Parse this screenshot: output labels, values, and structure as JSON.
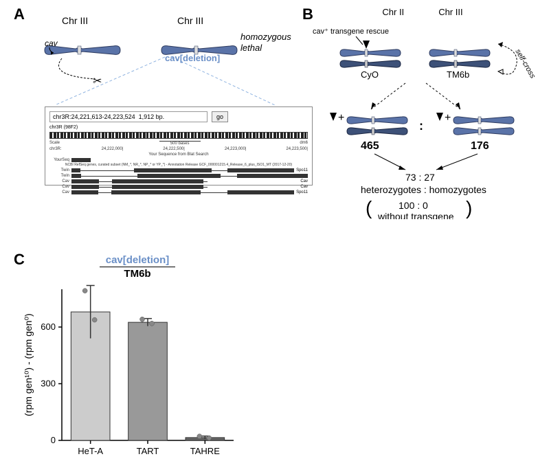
{
  "panelA": {
    "label": "A",
    "chrom_label_left": "Chr III",
    "chrom_label_right": "Chr III",
    "cav_label": "cav",
    "deletion_label": "cav[deletion]",
    "deletion_color": "#6a8fc7",
    "phenotype": "homozygous lethal",
    "browser": {
      "location": "chr3R:24,221,613-24,223,524  1,912 bp.",
      "go": "go",
      "ideo_label": "chr3R (98F2)",
      "scale_label": "Scale",
      "scale_val": "500 bases",
      "dm6": "dm6",
      "chr_row": "chr3R:",
      "coords": [
        "24,222,000|",
        "24,222,500|",
        "24,223,000|",
        "24,223,500|"
      ],
      "yourseq_title": "Your Sequence from Blat Search",
      "refseq_title": "NCBI RefSeq genes, curated subset (NM_*, NR_*, NP_* or YP_*) - Annotation Release GCF_000001215.4_Release_6_plus_ISO1_MT (2017-12-20)",
      "tracks": [
        "YourSeq",
        "Twin",
        "Twin",
        "Cav",
        "Cav",
        "Cav"
      ],
      "right_labels": [
        "Spo11",
        "",
        "Cav",
        "Cav",
        "Spo11"
      ]
    }
  },
  "panelB": {
    "label": "B",
    "chrII": "Chr II",
    "chrIII": "Chr III",
    "rescue": "cav⁺ transgene rescue",
    "cyo": "CyO",
    "tm6b": "TM6b",
    "self_cross": "self-cross",
    "count_left": "465",
    "count_right": "176",
    "colon": ":",
    "ratio": "73 : 27",
    "ratio_label": "heterozygotes : homozygotes",
    "paren_top": "100 : 0",
    "paren_bottom": "without transgene"
  },
  "panelC": {
    "label": "C",
    "title_del": "cav[deletion]",
    "title_tm": "TM6b",
    "ylabel": "(rpm gen¹⁰) - (rpm gen⁰)",
    "categories": [
      "HeT-A",
      "TART",
      "TAHRE"
    ],
    "values": [
      680,
      625,
      15
    ],
    "errors": [
      140,
      20,
      8
    ],
    "colors": [
      "#cccccc",
      "#999999",
      "#666666"
    ],
    "ylim": [
      0,
      800
    ],
    "yticks": [
      0,
      300,
      600
    ],
    "axis_color": "#000",
    "point_color": "#888888"
  },
  "chrom_fill": "#5a73a8",
  "chrom_stroke": "#2d3a5e"
}
